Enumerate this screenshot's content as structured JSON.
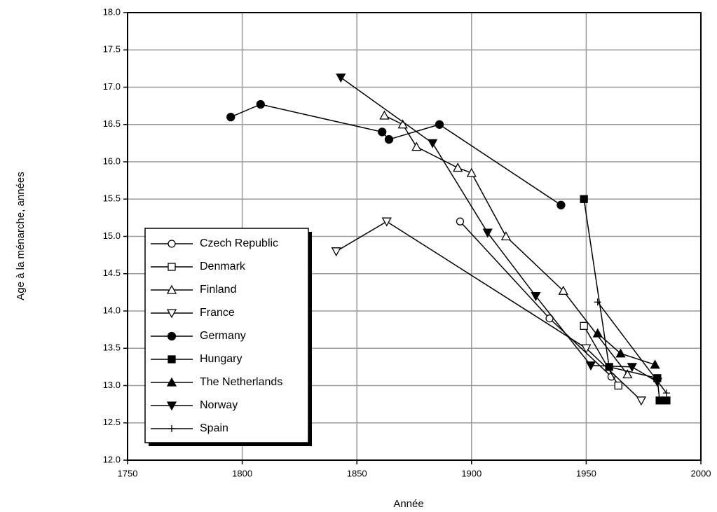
{
  "chart_data": {
    "type": "line",
    "xlabel": "Année",
    "ylabel": "Age à la ménarche, années",
    "xlim": [
      1750,
      2000
    ],
    "xticks": [
      1750,
      1800,
      1850,
      1900,
      1950,
      2000
    ],
    "ylim": [
      12,
      18
    ],
    "yticks": [
      {
        "value": 12,
        "label": "12.0"
      },
      12.5,
      {
        "value": 13,
        "label": "13.0"
      },
      13.5,
      {
        "value": 14,
        "label": "14.0"
      },
      14.5,
      {
        "value": 15,
        "label": "15.0"
      },
      15.5,
      {
        "value": 16,
        "label": "16.0"
      },
      16.5,
      {
        "value": 17,
        "label": "17.0"
      },
      17.5,
      {
        "value": 18,
        "label": "18.0"
      }
    ],
    "grid": true,
    "legend": "lower left",
    "series": [
      {
        "name": "Czech Republic",
        "color": "#000000",
        "marker": "circle-open",
        "x": [
          1895,
          1934,
          1961
        ],
        "values": [
          15.2,
          13.9,
          13.12
        ]
      },
      {
        "name": "Denmark",
        "color": "#000000",
        "marker": "square-open",
        "x": [
          1949,
          1964
        ],
        "values": [
          13.8,
          13.0
        ]
      },
      {
        "name": "Finland",
        "color": "#000000",
        "marker": "triangle-open",
        "x": [
          1862,
          1870,
          1876,
          1894,
          1900,
          1915,
          1940,
          1968
        ],
        "values": [
          16.62,
          16.5,
          16.2,
          15.92,
          15.85,
          15.0,
          14.27,
          13.15
        ]
      },
      {
        "name": "France",
        "color": "#000000",
        "marker": "down-open",
        "x": [
          1841,
          1863,
          1950,
          1974
        ],
        "values": [
          14.8,
          15.2,
          13.5,
          12.8
        ]
      },
      {
        "name": "Germany",
        "color": "#000000",
        "marker": "circle-filled",
        "x": [
          1795,
          1808,
          1861,
          1864,
          1886,
          1939
        ],
        "values": [
          16.6,
          16.77,
          16.4,
          16.3,
          16.5,
          15.42
        ]
      },
      {
        "name": "Hungary",
        "color": "#000000",
        "marker": "square-filled",
        "x": [
          1949,
          1960,
          1981,
          1982,
          1985
        ],
        "values": [
          15.5,
          13.25,
          13.1,
          12.8,
          12.8
        ]
      },
      {
        "name": "The Netherlands",
        "color": "#000000",
        "marker": "triangle-filled",
        "x": [
          1955,
          1965,
          1980
        ],
        "values": [
          13.7,
          13.43,
          13.28
        ]
      },
      {
        "name": "Norway",
        "color": "#000000",
        "marker": "down-filled",
        "x": [
          1843,
          1883,
          1907,
          1928,
          1952,
          1970,
          1981
        ],
        "values": [
          17.13,
          16.25,
          15.05,
          14.2,
          13.27,
          13.25,
          13.05
        ]
      },
      {
        "name": "Spain",
        "color": "#000000",
        "marker": "plus",
        "x": [
          1955,
          1985
        ],
        "values": [
          14.12,
          12.9
        ]
      }
    ]
  }
}
